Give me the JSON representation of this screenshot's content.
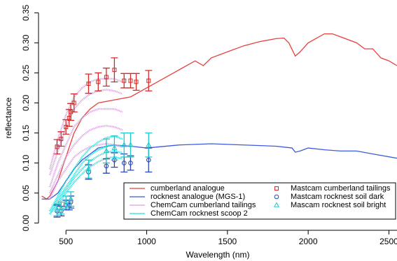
{
  "chart_data": {
    "type": "line",
    "xlabel": "Wavelength (nm)",
    "ylabel": "reflectance",
    "xlim": [
      330,
      2550
    ],
    "ylim": [
      -0.012,
      0.362
    ],
    "xticks": [
      500,
      1000,
      1500,
      2000,
      2500
    ],
    "yticks": [
      {
        "value": 0,
        "label": "0.00"
      },
      {
        "value": 0.05,
        "label": "0.05"
      },
      {
        "value": 0.1,
        "label": "0.10"
      },
      0.15,
      {
        "value": 0.2,
        "label": "0.20"
      },
      0.25,
      {
        "value": 0.3,
        "label": "0.30"
      },
      0.35
    ],
    "legend": "bottom-right",
    "series": [
      {
        "name": "cumberland analogue",
        "kind": "line",
        "color": "#e8403c",
        "x": [
          350,
          380,
          400,
          450,
          500,
          550,
          600,
          650,
          700,
          800,
          900,
          1000,
          1100,
          1200,
          1300,
          1350,
          1400,
          1500,
          1600,
          1700,
          1800,
          1850,
          1880,
          1920,
          1950,
          2000,
          2100,
          2150,
          2200,
          2300,
          2350,
          2400,
          2450,
          2500,
          2550
        ],
        "values": [
          0.045,
          0.04,
          0.045,
          0.07,
          0.11,
          0.15,
          0.175,
          0.19,
          0.2,
          0.205,
          0.21,
          0.225,
          0.24,
          0.255,
          0.27,
          0.262,
          0.275,
          0.285,
          0.295,
          0.302,
          0.307,
          0.308,
          0.3,
          0.278,
          0.285,
          0.3,
          0.315,
          0.315,
          0.31,
          0.3,
          0.29,
          0.29,
          0.275,
          0.27,
          0.262
        ]
      },
      {
        "name": "rocknest analogue (MGS-1)",
        "kind": "line",
        "color": "#3b5bdb",
        "x": [
          350,
          400,
          450,
          500,
          550,
          600,
          650,
          700,
          800,
          900,
          1000,
          1200,
          1400,
          1600,
          1800,
          1900,
          1920,
          1950,
          2000,
          2100,
          2200,
          2300,
          2400,
          2550
        ],
        "values": [
          0.04,
          0.04,
          0.05,
          0.07,
          0.09,
          0.105,
          0.115,
          0.125,
          0.13,
          0.128,
          0.125,
          0.13,
          0.132,
          0.13,
          0.128,
          0.125,
          0.118,
          0.12,
          0.125,
          0.122,
          0.12,
          0.12,
          0.115,
          0.108
        ]
      },
      {
        "name": "ChemCam cumberland tailings",
        "kind": "spectra",
        "color": "#d9a0e0",
        "x": [
          400,
          450,
          500,
          550,
          600,
          650,
          700,
          750,
          800,
          850
        ],
        "spectra": [
          [
            0.09,
            0.14,
            0.18,
            0.21,
            0.225,
            0.235,
            0.24,
            0.24,
            0.24,
            0.235
          ],
          [
            0.08,
            0.12,
            0.16,
            0.19,
            0.205,
            0.215,
            0.22,
            0.222,
            0.22,
            0.215
          ],
          [
            0.06,
            0.1,
            0.13,
            0.16,
            0.175,
            0.185,
            0.19,
            0.19,
            0.19,
            0.185
          ],
          [
            0.05,
            0.08,
            0.11,
            0.13,
            0.145,
            0.155,
            0.16,
            0.162,
            0.16,
            0.155
          ],
          [
            0.04,
            0.07,
            0.09,
            0.11,
            0.12,
            0.127,
            0.13,
            0.132,
            0.13,
            0.127
          ]
        ]
      },
      {
        "name": "ChemCam rocknest scoop 2",
        "kind": "spectra",
        "color": "#22e0e0",
        "x": [
          400,
          450,
          500,
          550,
          600,
          650,
          700,
          750,
          800,
          850
        ],
        "spectra": [
          [
            0.02,
            0.045,
            0.07,
            0.09,
            0.11,
            0.125,
            0.135,
            0.142,
            0.145,
            0.14
          ],
          [
            0.02,
            0.04,
            0.06,
            0.08,
            0.1,
            0.113,
            0.122,
            0.128,
            0.13,
            0.127
          ],
          [
            0.015,
            0.035,
            0.055,
            0.075,
            0.09,
            0.103,
            0.112,
            0.118,
            0.12,
            0.117
          ],
          [
            0.015,
            0.03,
            0.05,
            0.068,
            0.082,
            0.094,
            0.102,
            0.108,
            0.11,
            0.107
          ]
        ]
      },
      {
        "name": "Mastcam cumberland tailings",
        "kind": "points",
        "marker": "square",
        "color": "#d42a2a",
        "x": [
          445,
          470,
          500,
          520,
          530,
          550,
          640,
          700,
          750,
          800,
          860,
          900,
          935,
          1012
        ],
        "values": [
          0.127,
          0.14,
          0.16,
          0.175,
          0.185,
          0.2,
          0.232,
          0.235,
          0.243,
          0.255,
          0.237,
          0.237,
          0.235,
          0.237
        ],
        "errors": [
          0.012,
          0.012,
          0.012,
          0.014,
          0.014,
          0.015,
          0.016,
          0.015,
          0.015,
          0.02,
          0.012,
          0.012,
          0.014,
          0.017
        ]
      },
      {
        "name": "Mastcam rocknest soil dark",
        "kind": "points",
        "marker": "circle",
        "color": "#2545b8",
        "x": [
          445,
          470,
          500,
          520,
          530,
          640,
          750,
          800,
          860,
          900,
          1012
        ],
        "values": [
          0.02,
          0.02,
          0.03,
          0.03,
          0.035,
          0.085,
          0.095,
          0.105,
          0.1,
          0.1,
          0.105
        ],
        "errors": [
          0.01,
          0.008,
          0.008,
          0.008,
          0.01,
          0.012,
          0.012,
          0.012,
          0.015,
          0.012,
          0.02
        ]
      },
      {
        "name": "Mascam rocknest soil bright",
        "kind": "points",
        "marker": "triangle",
        "color": "#1fc8c8",
        "x": [
          445,
          470,
          500,
          530,
          640,
          750,
          800,
          860,
          900,
          1012
        ],
        "values": [
          0.022,
          0.025,
          0.035,
          0.04,
          0.09,
          0.12,
          0.125,
          0.13,
          0.13,
          0.13
        ],
        "errors": [
          0.01,
          0.01,
          0.01,
          0.012,
          0.015,
          0.02,
          0.02,
          0.02,
          0.02,
          0.02
        ]
      }
    ]
  }
}
